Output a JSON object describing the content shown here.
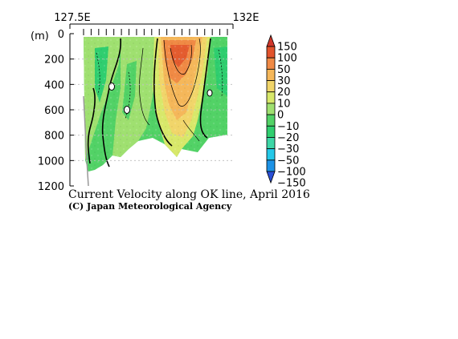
{
  "chart_data": {
    "type": "heatmap",
    "title": "Current Velocity along OK line, April 2016",
    "subtitle": "(C) Japan Meteorological Agency",
    "ylabel": "(m)",
    "x_ticks": [
      "127.5E",
      "132E"
    ],
    "xlim": [
      127.5,
      132
    ],
    "ylim": [
      1200,
      0
    ],
    "y_ticks": [
      0,
      200,
      400,
      600,
      800,
      1000,
      1200
    ],
    "y_tick_labels": [
      "0",
      "200",
      "400",
      "600",
      "800",
      "1000",
      "1200"
    ],
    "colorbar": {
      "levels": [
        -150,
        -100,
        -50,
        -30,
        -20,
        -10,
        0,
        10,
        20,
        30,
        50,
        100,
        150
      ],
      "labels": [
        "150",
        "100",
        "50",
        "30",
        "20",
        "10",
        "0",
        "−10",
        "−20",
        "−30",
        "−50",
        "−100",
        "−150"
      ],
      "colors": [
        "#2a4fd6",
        "#1c92e6",
        "#24c8e8",
        "#3dd6a6",
        "#2fce6f",
        "#52d266",
        "#9fe070",
        "#d8e86a",
        "#f1d56a",
        "#f5b75a",
        "#f08a45",
        "#e2532c",
        "#d0362a"
      ]
    },
    "grid": true,
    "station_marks": 20
  }
}
